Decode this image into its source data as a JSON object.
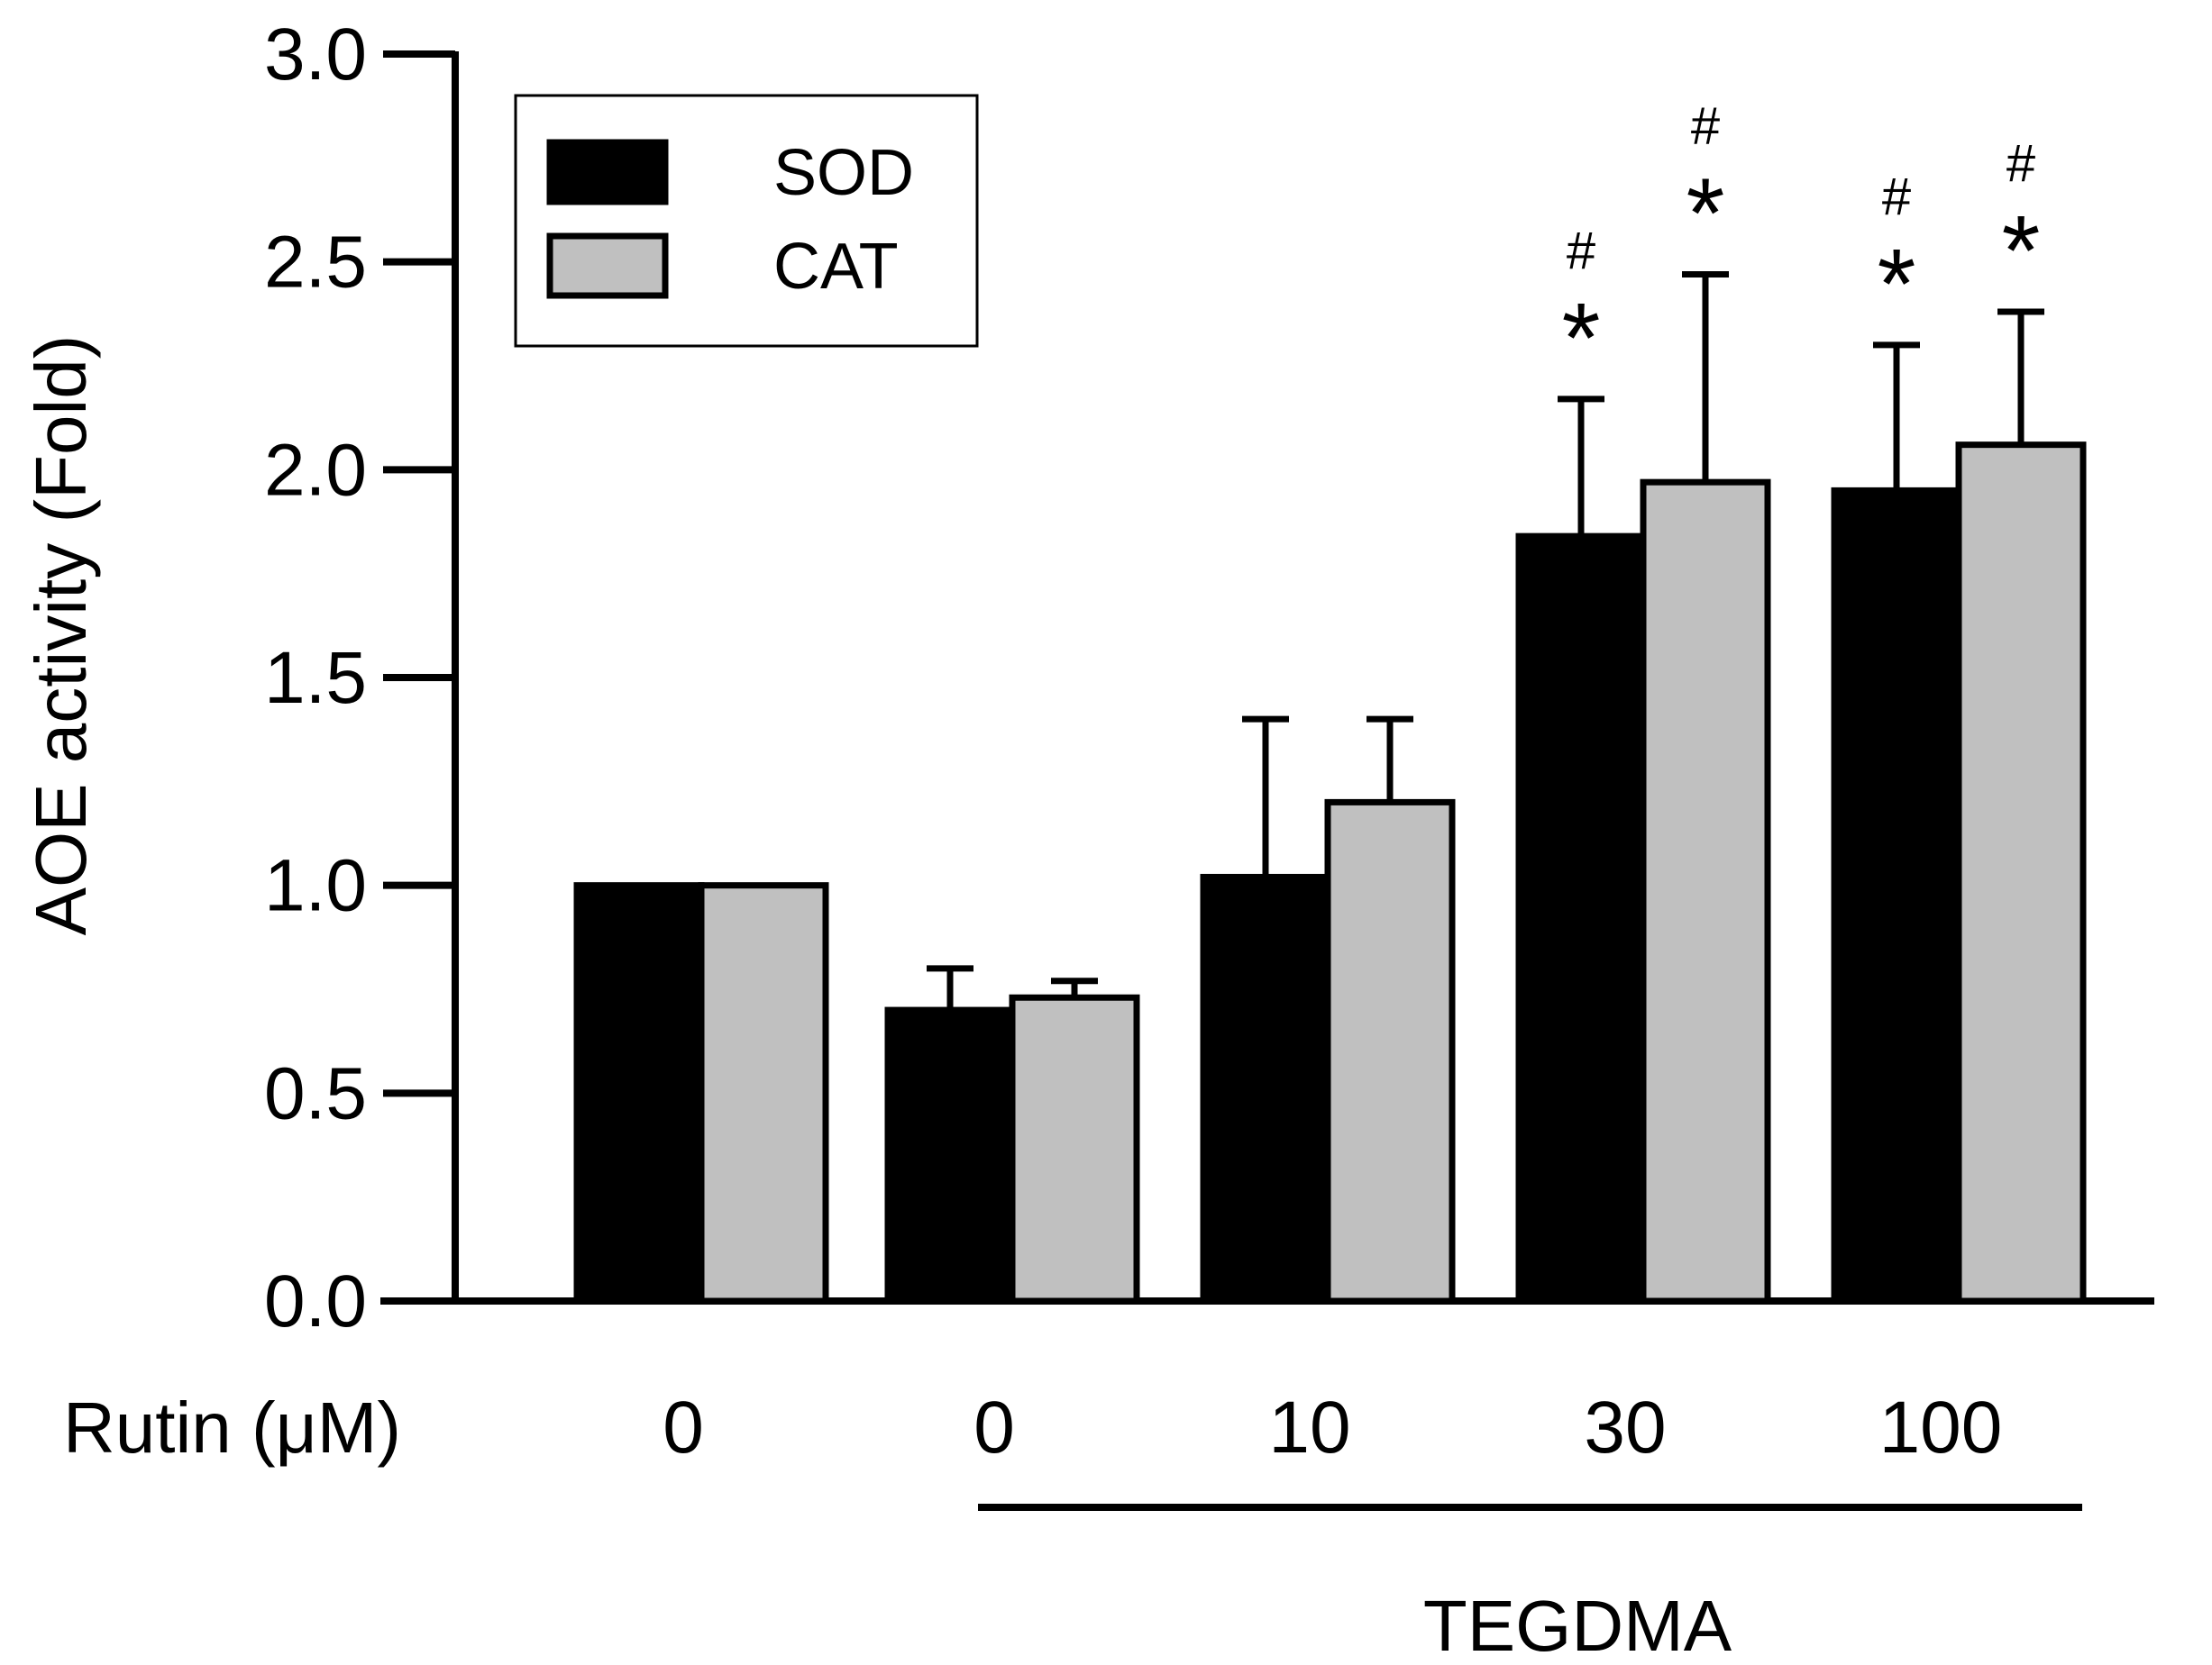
{
  "chart_data": {
    "type": "bar",
    "title": "",
    "ylabel": "AOE activity (Fold)",
    "xlabel": "Rutin (μM)",
    "ylim": [
      0,
      3
    ],
    "yticks": [
      "0.0",
      "0.5",
      "1.0",
      "1.5",
      "2.0",
      "2.5",
      "3.0"
    ],
    "categories": [
      "0",
      "0",
      "10",
      "30",
      "100"
    ],
    "group_label": "TEGDMA",
    "group_categories": [
      1,
      2,
      3,
      4
    ],
    "series": [
      {
        "name": "SOD",
        "color": "#000000",
        "values": [
          1.0,
          0.7,
          1.02,
          1.84,
          1.95
        ],
        "errors": [
          0,
          0.1,
          0.38,
          0.33,
          0.35
        ]
      },
      {
        "name": "CAT",
        "color": "#c0c0c0",
        "values": [
          1.0,
          0.73,
          1.2,
          1.97,
          2.06
        ],
        "errors": [
          0,
          0.04,
          0.2,
          0.5,
          0.32
        ]
      }
    ],
    "annotations": [
      {
        "category": 3,
        "series": 0,
        "lines": [
          "#",
          "*"
        ]
      },
      {
        "category": 3,
        "series": 1,
        "lines": [
          "#",
          "*"
        ]
      },
      {
        "category": 4,
        "series": 0,
        "lines": [
          "#",
          "*"
        ]
      },
      {
        "category": 4,
        "series": 1,
        "lines": [
          "#",
          "*"
        ]
      }
    ],
    "legend": {
      "position": "top-left"
    }
  }
}
